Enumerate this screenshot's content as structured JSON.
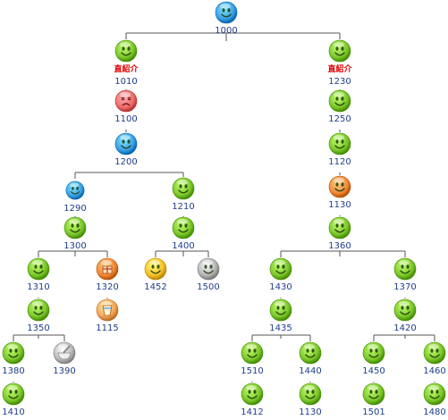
{
  "tree": {
    "nodes": [
      {
        "id": "n1000",
        "label": "1000",
        "icon": "smiley-blue-icon",
        "color": "#3aa0e6",
        "tag": ""
      },
      {
        "id": "n1010",
        "label": "1010",
        "icon": "smiley-green-icon",
        "color": "#7cc72a",
        "tag": "直紹介"
      },
      {
        "id": "n1230",
        "label": "1230",
        "icon": "smiley-green-icon",
        "color": "#7cc72a",
        "tag": "直紹介"
      },
      {
        "id": "n1100",
        "label": "1100",
        "icon": "smiley-dead-red-icon",
        "color": "#ee6b6b",
        "tag": ""
      },
      {
        "id": "n1250",
        "label": "1250",
        "icon": "smiley-green-icon",
        "color": "#7cc72a",
        "tag": ""
      },
      {
        "id": "n1200",
        "label": "1200",
        "icon": "smiley-blue-icon",
        "color": "#3aa0e6",
        "tag": ""
      },
      {
        "id": "n1120",
        "label": "1120",
        "icon": "smiley-green-icon",
        "color": "#7cc72a",
        "tag": ""
      },
      {
        "id": "n1290",
        "label": "1290",
        "icon": "smiley-blue-icon",
        "color": "#3aa0e6",
        "tag": ""
      },
      {
        "id": "n1210",
        "label": "1210",
        "icon": "smiley-green-icon",
        "color": "#7cc72a",
        "tag": ""
      },
      {
        "id": "n1130a",
        "label": "1130",
        "icon": "smiley-orange-icon",
        "color": "#f08a3a",
        "tag": ""
      },
      {
        "id": "n1300",
        "label": "1300",
        "icon": "smiley-green-icon",
        "color": "#7cc72a",
        "tag": ""
      },
      {
        "id": "n1400",
        "label": "1400",
        "icon": "smiley-green-icon",
        "color": "#7cc72a",
        "tag": ""
      },
      {
        "id": "n1360",
        "label": "1360",
        "icon": "smiley-green-icon",
        "color": "#7cc72a",
        "tag": ""
      },
      {
        "id": "n1310",
        "label": "1310",
        "icon": "smiley-green-icon",
        "color": "#7cc72a",
        "tag": ""
      },
      {
        "id": "n1320",
        "label": "1320",
        "icon": "gift-orange-icon",
        "color": "#f08a3a",
        "tag": ""
      },
      {
        "id": "n1452",
        "label": "1452",
        "icon": "smiley-yellow-icon",
        "color": "#f5c02a",
        "tag": ""
      },
      {
        "id": "n1500",
        "label": "1500",
        "icon": "smiley-gray-icon",
        "color": "#b4b4b4",
        "tag": ""
      },
      {
        "id": "n1430",
        "label": "1430",
        "icon": "smiley-green-icon",
        "color": "#7cc72a",
        "tag": ""
      },
      {
        "id": "n1370",
        "label": "1370",
        "icon": "smiley-green-icon",
        "color": "#7cc72a",
        "tag": ""
      },
      {
        "id": "n1115",
        "label": "1115",
        "icon": "drink-orange-icon",
        "color": "#f3a65a",
        "tag": ""
      },
      {
        "id": "n1350",
        "label": "1350",
        "icon": "smiley-green-icon",
        "color": "#7cc72a",
        "tag": ""
      },
      {
        "id": "n1435",
        "label": "1435",
        "icon": "smiley-green-icon",
        "color": "#7cc72a",
        "tag": ""
      },
      {
        "id": "n1420",
        "label": "1420",
        "icon": "smiley-green-icon",
        "color": "#7cc72a",
        "tag": ""
      },
      {
        "id": "n1380",
        "label": "1380",
        "icon": "smiley-green-icon",
        "color": "#7cc72a",
        "tag": ""
      },
      {
        "id": "n1390",
        "label": "1390",
        "icon": "mortar-gray-icon",
        "color": "#b9b9b9",
        "tag": ""
      },
      {
        "id": "n1510",
        "label": "1510",
        "icon": "smiley-green-icon",
        "color": "#7cc72a",
        "tag": ""
      },
      {
        "id": "n1440",
        "label": "1440",
        "icon": "smiley-green-icon",
        "color": "#7cc72a",
        "tag": ""
      },
      {
        "id": "n1450",
        "label": "1450",
        "icon": "smiley-green-icon",
        "color": "#7cc72a",
        "tag": ""
      },
      {
        "id": "n1460",
        "label": "1460",
        "icon": "smiley-green-icon",
        "color": "#7cc72a",
        "tag": ""
      },
      {
        "id": "n1410",
        "label": "1410",
        "icon": "smiley-green-icon",
        "color": "#7cc72a",
        "tag": ""
      },
      {
        "id": "n1412",
        "label": "1412",
        "icon": "smiley-green-icon",
        "color": "#7cc72a",
        "tag": ""
      },
      {
        "id": "n1130b",
        "label": "1130",
        "icon": "smiley-green-icon",
        "color": "#7cc72a",
        "tag": ""
      },
      {
        "id": "n1501",
        "label": "1501",
        "icon": "smiley-green-icon",
        "color": "#7cc72a",
        "tag": ""
      },
      {
        "id": "n1480",
        "label": "1480",
        "icon": "smiley-green-icon",
        "color": "#7cc72a",
        "tag": ""
      }
    ],
    "edges": [
      [
        "n1000",
        "n1010"
      ],
      [
        "n1000",
        "n1230"
      ],
      [
        "n1010",
        "n1100"
      ],
      [
        "n1100",
        "n1200"
      ],
      [
        "n1200",
        "n1290"
      ],
      [
        "n1200",
        "n1210"
      ],
      [
        "n1290",
        "n1300"
      ],
      [
        "n1300",
        "n1310"
      ],
      [
        "n1300",
        "n1320"
      ],
      [
        "n1310",
        "n1350"
      ],
      [
        "n1350",
        "n1380"
      ],
      [
        "n1350",
        "n1390"
      ],
      [
        "n1380",
        "n1410"
      ],
      [
        "n1320",
        "n1115"
      ],
      [
        "n1210",
        "n1400"
      ],
      [
        "n1400",
        "n1452"
      ],
      [
        "n1400",
        "n1500"
      ],
      [
        "n1230",
        "n1250"
      ],
      [
        "n1250",
        "n1120"
      ],
      [
        "n1120",
        "n1130a"
      ],
      [
        "n1130a",
        "n1360"
      ],
      [
        "n1360",
        "n1430"
      ],
      [
        "n1360",
        "n1370"
      ],
      [
        "n1430",
        "n1435"
      ],
      [
        "n1435",
        "n1510"
      ],
      [
        "n1435",
        "n1440"
      ],
      [
        "n1510",
        "n1412"
      ],
      [
        "n1440",
        "n1130b"
      ],
      [
        "n1370",
        "n1420"
      ],
      [
        "n1420",
        "n1450"
      ],
      [
        "n1420",
        "n1460"
      ],
      [
        "n1450",
        "n1501"
      ],
      [
        "n1460",
        "n1480"
      ]
    ]
  }
}
